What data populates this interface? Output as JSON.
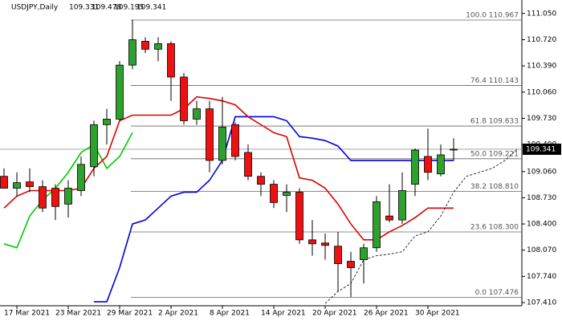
{
  "chart_data": {
    "type": "candlestick",
    "symbol": "USDJPY,Daily",
    "ohlc": [
      109.331,
      109.478,
      109.195,
      109.341
    ],
    "last_price": 109.341,
    "ylim": [
      107.37,
      111.22
    ],
    "yticks": [
      {
        "value": 111.05,
        "label": "111.050"
      },
      {
        "value": 110.72,
        "label": "110.720"
      },
      {
        "value": 110.39,
        "label": "110.390"
      },
      {
        "value": 110.06,
        "label": "110.060"
      },
      {
        "value": 109.73,
        "label": "109.730"
      },
      {
        "value": 109.4,
        "label": "109.400"
      },
      {
        "value": 109.06,
        "label": "109.060"
      },
      {
        "value": 108.73,
        "label": "108.730"
      },
      {
        "value": 108.4,
        "label": "108.400"
      },
      {
        "value": 108.07,
        "label": "108.070"
      },
      {
        "value": 107.74,
        "label": "107.740"
      },
      {
        "value": 107.41,
        "label": "107.410"
      }
    ],
    "categories": [
      null,
      "17 Mar 2021",
      null,
      null,
      null,
      "23 Mar 2021",
      null,
      null,
      null,
      "29 Mar 2021",
      null,
      null,
      null,
      "2 Apr 2021",
      null,
      null,
      null,
      "8 Apr 2021",
      null,
      null,
      null,
      "14 Apr 2021",
      null,
      null,
      null,
      "20 Apr 2021",
      null,
      null,
      null,
      "26 Apr 2021",
      null,
      null,
      null,
      "30 Apr 2021",
      null,
      null,
      null,
      null,
      null,
      null,
      null
    ],
    "open": [
      109.0,
      108.85,
      108.93,
      108.87,
      108.85,
      108.65,
      108.82,
      109.12,
      109.65,
      109.72,
      110.4,
      110.7,
      110.6,
      110.67,
      110.25,
      109.72,
      109.85,
      109.2,
      109.65,
      109.3,
      109.0,
      108.9,
      108.76,
      108.8,
      108.2,
      108.16,
      108.12,
      107.93,
      107.95,
      108.1,
      108.5,
      108.45,
      108.9,
      109.25,
      109.03,
      109.331,
      null,
      null,
      null,
      null,
      null
    ],
    "high": [
      109.1,
      109.05,
      109.1,
      108.95,
      108.9,
      108.95,
      109.25,
      109.7,
      109.85,
      110.45,
      110.97,
      110.75,
      110.75,
      110.7,
      110.3,
      109.95,
      109.95,
      110.0,
      109.68,
      109.4,
      109.05,
      108.95,
      108.9,
      108.85,
      108.45,
      108.28,
      108.3,
      108.05,
      108.15,
      108.75,
      108.9,
      109.05,
      109.35,
      109.6,
      109.4,
      109.478,
      null,
      null,
      null,
      null,
      null
    ],
    "low": [
      108.85,
      108.75,
      108.8,
      108.55,
      108.45,
      108.48,
      108.75,
      109.0,
      109.4,
      109.7,
      110.35,
      110.55,
      110.45,
      109.95,
      109.65,
      109.65,
      109.05,
      109.15,
      109.2,
      108.95,
      108.75,
      108.6,
      108.55,
      108.15,
      108.0,
      107.95,
      107.55,
      107.48,
      107.65,
      108.05,
      108.42,
      108.4,
      108.75,
      108.95,
      109.0,
      109.195,
      null,
      null,
      null,
      null,
      null
    ],
    "close": [
      108.85,
      108.92,
      108.87,
      108.6,
      108.62,
      108.85,
      109.15,
      109.65,
      109.72,
      110.4,
      110.72,
      110.6,
      110.67,
      110.25,
      109.7,
      109.85,
      109.2,
      109.62,
      109.25,
      109.0,
      108.9,
      108.67,
      108.8,
      108.2,
      108.15,
      108.13,
      107.9,
      107.85,
      108.1,
      108.68,
      108.45,
      108.82,
      109.33,
      109.05,
      109.27,
      109.341,
      null,
      null,
      null,
      null,
      null
    ],
    "up_color": "#2ea02e",
    "down_color": "#ee1111",
    "lines": [
      {
        "color": "#00cc00",
        "dash": false,
        "values": [
          108.15,
          108.1,
          108.5,
          108.7,
          108.85,
          109.05,
          109.3,
          109.4,
          109.1,
          109.25,
          109.55,
          null,
          null,
          null,
          null,
          null,
          null,
          null,
          null,
          null,
          null,
          null,
          null,
          null,
          null,
          null,
          null,
          null,
          null,
          null,
          null,
          null,
          null,
          null,
          null,
          null,
          null,
          null,
          null,
          null,
          null
        ]
      },
      {
        "color": "#0000dd",
        "dash": false,
        "values": [
          null,
          null,
          null,
          null,
          null,
          null,
          null,
          107.42,
          107.42,
          107.85,
          108.4,
          108.45,
          108.6,
          108.75,
          108.8,
          108.8,
          108.95,
          109.2,
          109.75,
          109.75,
          109.75,
          109.75,
          109.7,
          109.5,
          109.48,
          109.45,
          109.38,
          109.2,
          109.2,
          109.2,
          109.2,
          109.2,
          109.2,
          109.2,
          109.2,
          109.2,
          null,
          null,
          null,
          null,
          null
        ]
      },
      {
        "color": "#dd0000",
        "dash": false,
        "values": [
          108.6,
          108.75,
          108.82,
          108.82,
          108.82,
          108.82,
          108.85,
          109.1,
          109.25,
          109.7,
          109.77,
          109.77,
          109.77,
          109.77,
          109.85,
          110.0,
          109.98,
          109.95,
          109.9,
          109.75,
          109.65,
          109.55,
          109.5,
          108.98,
          108.95,
          108.85,
          108.65,
          108.4,
          108.2,
          108.2,
          108.3,
          108.38,
          108.48,
          108.6,
          108.6,
          108.6,
          null,
          null,
          null,
          null,
          null
        ]
      },
      {
        "color": "#000000",
        "dash": true,
        "values": [
          null,
          null,
          null,
          null,
          null,
          null,
          null,
          null,
          null,
          null,
          null,
          null,
          null,
          null,
          null,
          null,
          null,
          null,
          null,
          null,
          null,
          null,
          null,
          null,
          null,
          107.4,
          107.55,
          107.65,
          107.95,
          108.0,
          108.02,
          108.05,
          108.25,
          108.3,
          108.5,
          108.8,
          109.0,
          109.05,
          109.1,
          109.2,
          109.35
        ]
      }
    ],
    "fib_levels": [
      {
        "value": 110.967,
        "label": "100.0 110.967"
      },
      {
        "value": 110.143,
        "label": "76.4 110.143"
      },
      {
        "value": 109.633,
        "label": "61.8 109.633"
      },
      {
        "value": 109.221,
        "label": "50.0 109.221"
      },
      {
        "value": 108.81,
        "label": "38.2 108.810"
      },
      {
        "value": 108.3,
        "label": "23.6 108.300"
      },
      {
        "value": 107.476,
        "label": "0.0 107.476"
      }
    ]
  }
}
